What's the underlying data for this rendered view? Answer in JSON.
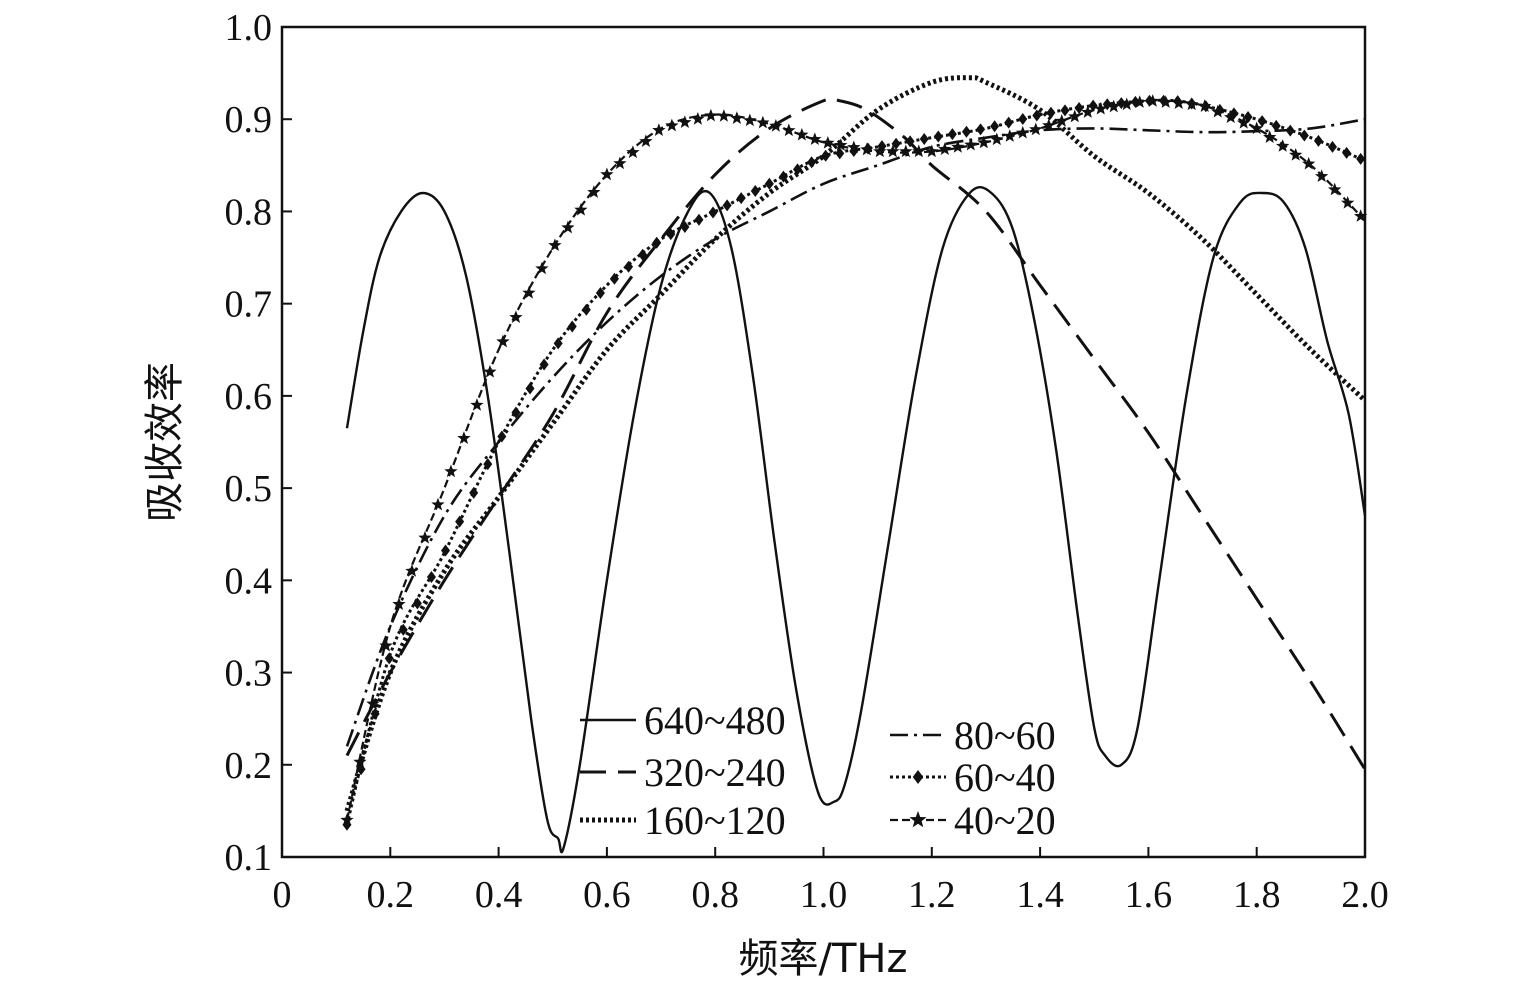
{
  "chart_data": {
    "type": "line",
    "title": "",
    "xlabel": "频率/THz",
    "ylabel": "吸收效率",
    "xlim": [
      0,
      2.0
    ],
    "ylim": [
      0.1,
      1.0
    ],
    "x_ticks": [
      "0",
      "0.2",
      "0.4",
      "0.6",
      "0.8",
      "1.0",
      "1.2",
      "1.4",
      "1.6",
      "1.8",
      "2.0"
    ],
    "y_ticks": [
      "0.1",
      "0.2",
      "0.3",
      "0.4",
      "0.5",
      "0.6",
      "0.7",
      "0.8",
      "0.9",
      "1.0"
    ],
    "grid": false,
    "legend_position": "bottom-center",
    "series": [
      {
        "name": "640~480",
        "style": "solid",
        "x": [
          0.12,
          0.15,
          0.18,
          0.22,
          0.26,
          0.3,
          0.34,
          0.38,
          0.42,
          0.46,
          0.49,
          0.51,
          0.52,
          0.55,
          0.6,
          0.65,
          0.7,
          0.75,
          0.79,
          0.83,
          0.87,
          0.91,
          0.95,
          0.99,
          1.02,
          1.04,
          1.07,
          1.12,
          1.17,
          1.22,
          1.27,
          1.31,
          1.35,
          1.39,
          1.43,
          1.47,
          1.5,
          1.52,
          1.55,
          1.58,
          1.62,
          1.67,
          1.72,
          1.77,
          1.81,
          1.85,
          1.89,
          1.93,
          1.97,
          2.0
        ],
        "y": [
          0.565,
          0.67,
          0.75,
          0.8,
          0.82,
          0.8,
          0.73,
          0.6,
          0.43,
          0.25,
          0.14,
          0.12,
          0.11,
          0.2,
          0.4,
          0.58,
          0.72,
          0.8,
          0.82,
          0.76,
          0.62,
          0.44,
          0.28,
          0.17,
          0.16,
          0.18,
          0.26,
          0.44,
          0.62,
          0.76,
          0.82,
          0.82,
          0.78,
          0.68,
          0.54,
          0.36,
          0.24,
          0.21,
          0.2,
          0.24,
          0.4,
          0.6,
          0.75,
          0.81,
          0.82,
          0.81,
          0.76,
          0.66,
          0.58,
          0.47
        ]
      },
      {
        "name": "320~240",
        "style": "dashed",
        "x": [
          0.12,
          0.2,
          0.3,
          0.4,
          0.5,
          0.6,
          0.7,
          0.8,
          0.9,
          1.0,
          1.03,
          1.08,
          1.15,
          1.2,
          1.3,
          1.4,
          1.5,
          1.6,
          1.7,
          1.8,
          1.9,
          2.0
        ],
        "y": [
          0.21,
          0.3,
          0.4,
          0.49,
          0.58,
          0.69,
          0.77,
          0.84,
          0.89,
          0.92,
          0.92,
          0.91,
          0.88,
          0.85,
          0.8,
          0.72,
          0.64,
          0.56,
          0.47,
          0.38,
          0.29,
          0.195
        ]
      },
      {
        "name": "160~120",
        "style": "dotted",
        "x": [
          0.12,
          0.2,
          0.3,
          0.4,
          0.5,
          0.6,
          0.7,
          0.8,
          0.9,
          1.0,
          1.1,
          1.2,
          1.27,
          1.3,
          1.4,
          1.5,
          1.6,
          1.7,
          1.8,
          1.9,
          2.0
        ],
        "y": [
          0.15,
          0.3,
          0.41,
          0.49,
          0.57,
          0.65,
          0.71,
          0.77,
          0.82,
          0.86,
          0.91,
          0.94,
          0.945,
          0.94,
          0.91,
          0.86,
          0.82,
          0.77,
          0.71,
          0.65,
          0.595
        ]
      },
      {
        "name": "80~60",
        "style": "dashdot",
        "x": [
          0.12,
          0.2,
          0.3,
          0.4,
          0.5,
          0.6,
          0.7,
          0.8,
          0.9,
          1.0,
          1.1,
          1.2,
          1.3,
          1.4,
          1.5,
          1.6,
          1.7,
          1.8,
          1.9,
          2.0
        ],
        "y": [
          0.22,
          0.35,
          0.47,
          0.55,
          0.62,
          0.68,
          0.73,
          0.77,
          0.8,
          0.83,
          0.85,
          0.87,
          0.88,
          0.888,
          0.89,
          0.888,
          0.886,
          0.887,
          0.89,
          0.9
        ]
      },
      {
        "name": "60~40",
        "style": "dotted-diamond",
        "x": [
          0.12,
          0.2,
          0.3,
          0.4,
          0.5,
          0.6,
          0.7,
          0.8,
          0.9,
          1.0,
          1.1,
          1.2,
          1.3,
          1.4,
          1.5,
          1.6,
          1.65,
          1.7,
          1.8,
          1.9,
          2.0
        ],
        "y": [
          0.135,
          0.32,
          0.43,
          0.55,
          0.65,
          0.72,
          0.77,
          0.8,
          0.83,
          0.86,
          0.87,
          0.88,
          0.89,
          0.905,
          0.915,
          0.92,
          0.92,
          0.915,
          0.9,
          0.88,
          0.855
        ]
      },
      {
        "name": "40~20",
        "style": "dashed-star",
        "x": [
          0.12,
          0.2,
          0.3,
          0.4,
          0.5,
          0.6,
          0.7,
          0.8,
          0.9,
          1.0,
          1.1,
          1.2,
          1.3,
          1.4,
          1.5,
          1.6,
          1.7,
          1.8,
          1.9,
          2.0
        ],
        "y": [
          0.14,
          0.35,
          0.5,
          0.65,
          0.76,
          0.84,
          0.89,
          0.905,
          0.895,
          0.875,
          0.865,
          0.865,
          0.875,
          0.89,
          0.91,
          0.92,
          0.915,
          0.89,
          0.85,
          0.79
        ]
      }
    ]
  }
}
